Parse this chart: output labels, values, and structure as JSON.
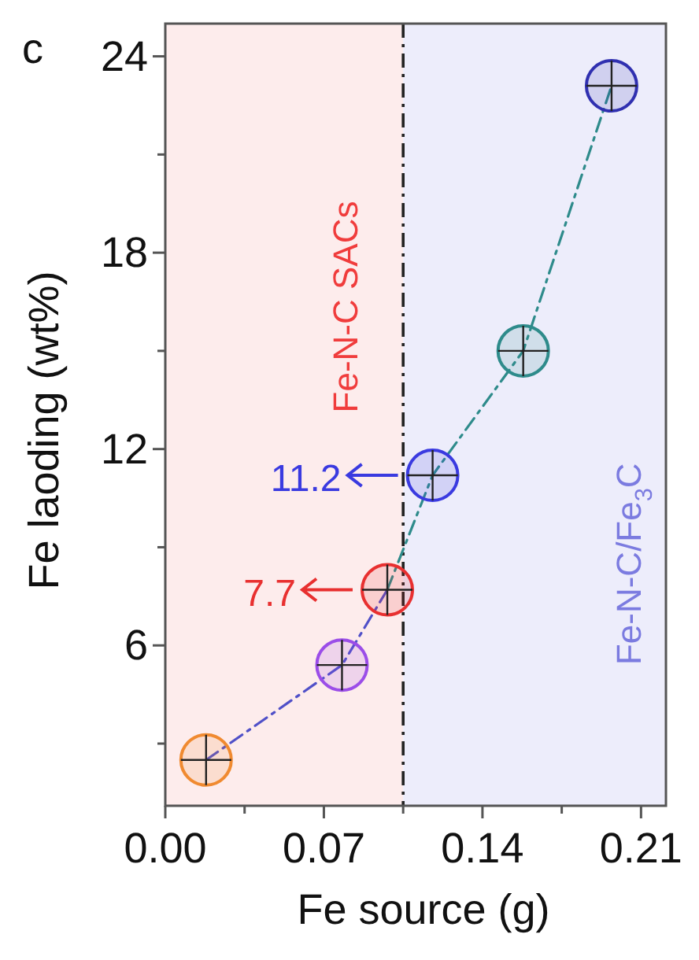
{
  "chart_data": {
    "type": "scatter",
    "xlabel": "Fe source (g)",
    "ylabel": "Fe laoding (wt%)",
    "xlim": [
      0,
      0.221
    ],
    "xticks": [
      {
        "value": 0,
        "label": "0.00"
      },
      {
        "value": 0.035,
        "label": null
      },
      {
        "value": 0.07,
        "label": "0.07"
      },
      {
        "value": 0.105,
        "label": null
      },
      {
        "value": 0.14,
        "label": "0.14"
      },
      {
        "value": 0.175,
        "label": null
      },
      {
        "value": 0.21,
        "label": "0.21"
      }
    ],
    "ylim": [
      1.1,
      25
    ],
    "yticks": [
      {
        "value": 3,
        "label": null
      },
      6,
      {
        "value": 9,
        "label": null
      },
      12,
      {
        "value": 15,
        "label": null
      },
      18,
      {
        "value": 21,
        "label": null
      },
      24
    ],
    "marker": "circle",
    "grid": false,
    "series": [
      {
        "type": "line",
        "line_style": "dashed",
        "marker": "none",
        "color": "#5050c8",
        "x": [
          0.018,
          0.078,
          0.098
        ],
        "values": [
          2.5,
          5.4,
          7.7
        ]
      },
      {
        "type": "line",
        "line_style": "dashed",
        "marker": "none",
        "color": "#2e8b8b",
        "x": [
          0.098,
          0.118,
          0.158,
          0.197
        ],
        "values": [
          7.7,
          11.2,
          15.0,
          23.1
        ]
      },
      {
        "x": [
          0.018,
          0.078,
          0.098,
          0.118,
          0.158,
          0.197
        ],
        "values": [
          2.5,
          5.4,
          7.7,
          11.2,
          15.0,
          23.1
        ],
        "colors": [
          "#f08a30",
          "#9b4de8",
          "#e83030",
          "#3a3ae0",
          "#2e8b8b",
          "#3030b0"
        ]
      }
    ],
    "bands": [
      {
        "axis": "x",
        "from": 0,
        "to": 0.105,
        "label": "Fe-N-C SACs",
        "color": "#fdecec"
      },
      {
        "axis": "x",
        "from": 0.105,
        "to": 0.221,
        "label": "Fe-N-C/Fe$_{3}$C",
        "color": "#ededfb"
      }
    ],
    "ref_lines": [
      {
        "axis": "x",
        "value": 0.105,
        "color": "#222222",
        "line_style": "dashed"
      }
    ],
    "annotations": [
      "c",
      {
        "text": "11.2",
        "x": 0.118,
        "y": 11.2
      },
      {
        "text": "7.7",
        "x": 0.098,
        "y": 7.7
      }
    ]
  }
}
